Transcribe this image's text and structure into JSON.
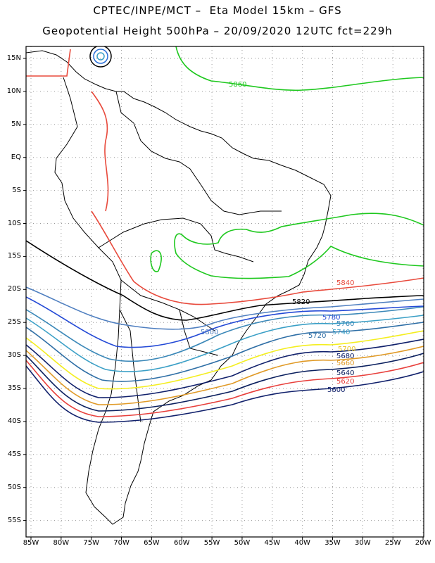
{
  "header": {
    "line1": "CPTEC/INPE/MCT –  Eta Model 15km – GFS",
    "line2": "Geopotential Height 500hPa – 20/09/2020 12UTC fct=229h"
  },
  "axes": {
    "lat_labels": [
      "15N",
      "10N",
      "5N",
      "EQ",
      "5S",
      "10S",
      "15S",
      "20S",
      "25S",
      "30S",
      "35S",
      "40S",
      "45S",
      "50S",
      "55S"
    ],
    "lon_labels": [
      "85W",
      "80W",
      "75W",
      "70W",
      "65W",
      "60W",
      "55W",
      "50W",
      "45W",
      "40W",
      "35W",
      "30W",
      "25W",
      "20W"
    ]
  },
  "colors": {
    "c5600": "#10206b",
    "c5620": "#e8403c",
    "c5640": "#0a1f5e",
    "c5660": "#e09a27",
    "c5700": "#f4ee20",
    "c5720": "#2f6fa6",
    "c5740": "#3a9fc6",
    "c5760": "#3b88b8",
    "c5780": "#2349d6",
    "c5800": "#4f7fc0",
    "c5820": "#000000",
    "c5840": "#e84a3c",
    "c5860": "#1ec81e",
    "land": "#000000",
    "grid": "#9a9a9a"
  },
  "contours": [
    {
      "level": "5600",
      "label": "5600"
    },
    {
      "level": "5620",
      "label": "5620"
    },
    {
      "level": "5640",
      "label": "5640"
    },
    {
      "level": "5660",
      "label": "5660"
    },
    {
      "level": "5680",
      "label": "5680"
    },
    {
      "level": "5700",
      "label": "5700"
    },
    {
      "level": "5720",
      "label": "5720"
    },
    {
      "level": "5740",
      "label": "5740"
    },
    {
      "level": "5760",
      "label": "5760"
    },
    {
      "level": "5780",
      "label": "5780"
    },
    {
      "level": "5800",
      "label": "5800"
    },
    {
      "level": "5820",
      "label": "5820"
    },
    {
      "level": "5840",
      "label": "5840"
    },
    {
      "level": "5860",
      "label": "5860"
    }
  ]
}
